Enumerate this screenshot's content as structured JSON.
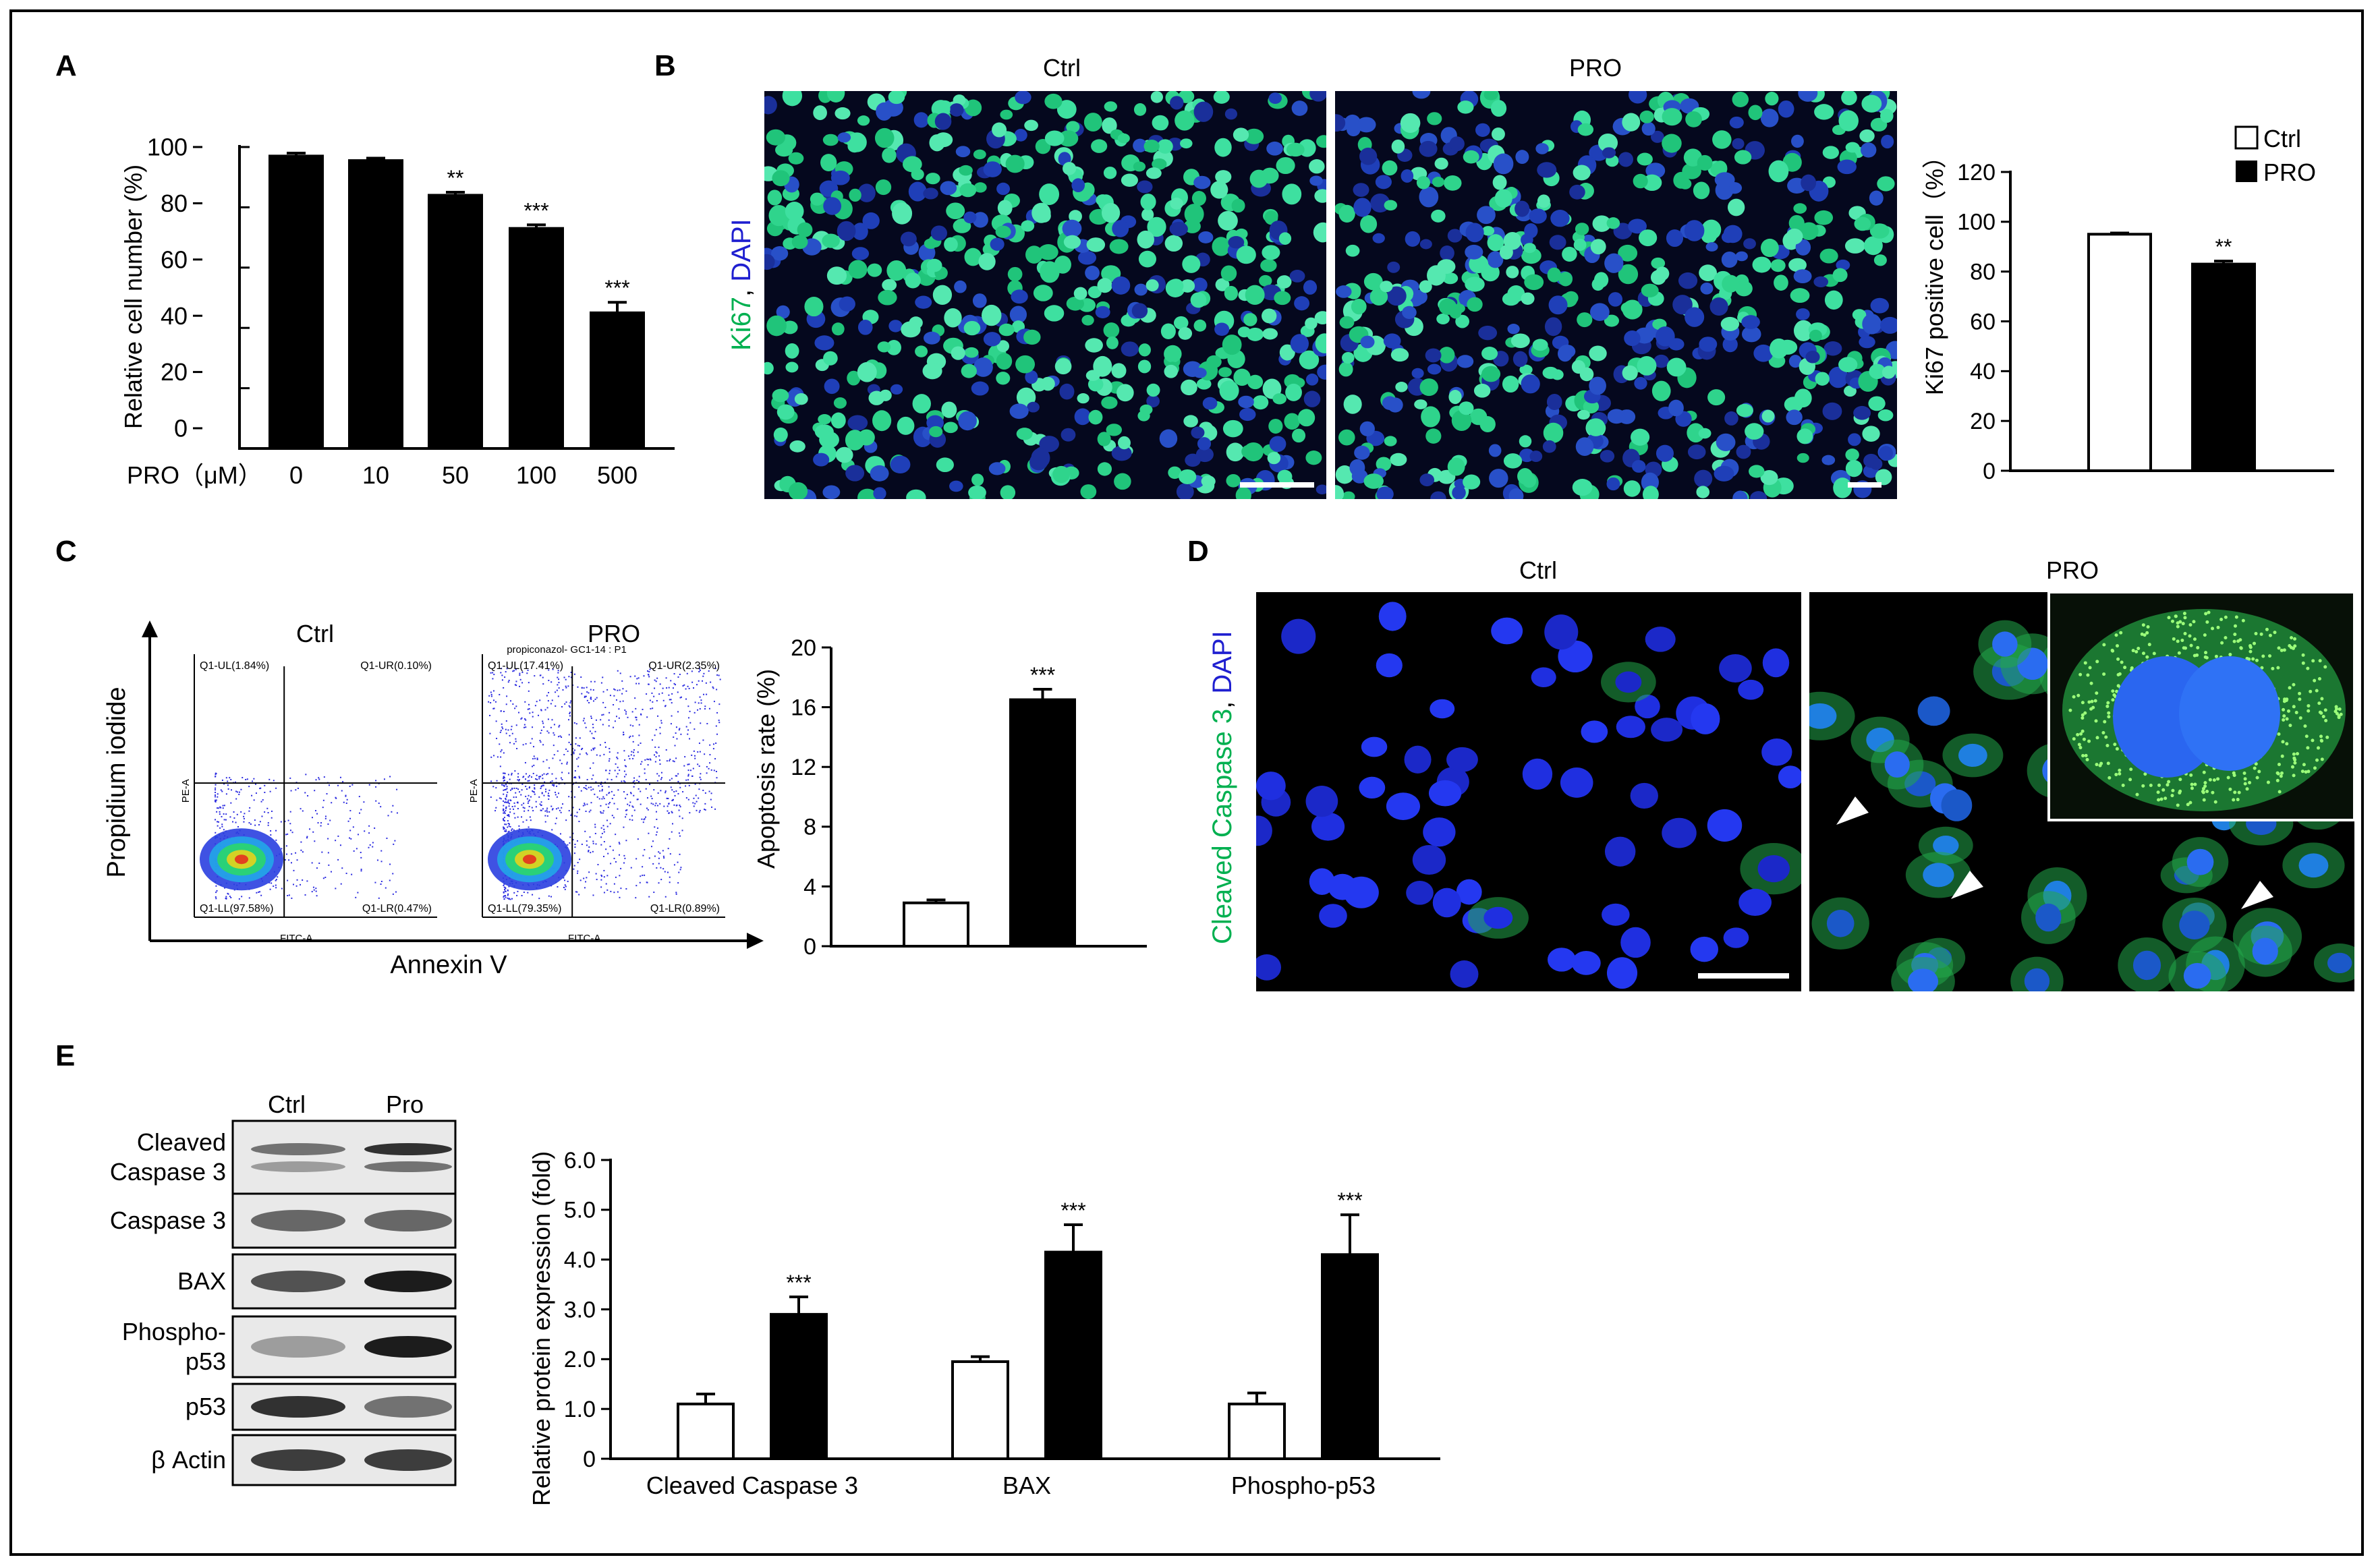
{
  "figure": {
    "panel_A": {
      "letter": "A",
      "ylabel": "Relative cell number (%)",
      "treatment_label": "PRO（μM）",
      "y_ticks": [
        "0",
        "20",
        "40",
        "60",
        "80",
        "100"
      ]
    },
    "panel_B": {
      "letter": "B",
      "image_titles": [
        "Ctrl",
        "PRO"
      ],
      "stain_label_parts": [
        "Ki67",
        ", ",
        "DAPI"
      ],
      "stain_colors": [
        "#00b050",
        "#000000",
        "#1f1fd0"
      ],
      "ylabel": "Ki67 positive cell（%）",
      "legend": [
        "Ctrl",
        "PRO"
      ],
      "y_ticks": [
        "0",
        "20",
        "40",
        "60",
        "80",
        "100",
        "120"
      ]
    },
    "panel_C": {
      "letter": "C",
      "flow_titles": [
        "Ctrl",
        "PRO"
      ],
      "flow_subtitle": "propiconazol- GC1-14 : P1",
      "flow_ylabel": "Propidium iodide",
      "flow_xlabel": "Annexin V",
      "flow_axis_y": "PE-A",
      "flow_axis_x": "FITC-A",
      "quadrants_ctrl": [
        "Q1-UL(1.84%)",
        "Q1-UR(0.10%)",
        "Q1-LL(97.58%)",
        "Q1-LR(0.47%)"
      ],
      "quadrants_pro": [
        "Q1-UL(17.41%)",
        "Q1-UR(2.35%)",
        "Q1-LL(79.35%)",
        "Q1-LR(0.89%)"
      ],
      "ylabel": "Apoptosis rate (%)",
      "y_ticks": [
        "0",
        "4",
        "8",
        "12",
        "16",
        "20"
      ]
    },
    "panel_D": {
      "letter": "D",
      "image_titles": [
        "Ctrl",
        "PRO"
      ],
      "stain_label_parts": [
        "Cleaved Caspase 3",
        ", ",
        "DAPI"
      ],
      "stain_colors": [
        "#00b050",
        "#000000",
        "#1f1fd0"
      ]
    },
    "panel_E": {
      "letter": "E",
      "blot_columns": [
        "Ctrl",
        "Pro"
      ],
      "blot_rows": [
        "Cleaved\nCaspase 3",
        "Caspase 3",
        "BAX",
        "Phospho-\np53",
        "p53",
        "β Actin"
      ],
      "ylabel": "Relative protein expression (fold)",
      "y_ticks": [
        "0",
        "1.0",
        "2.0",
        "3.0",
        "4.0",
        "5.0",
        "6.0"
      ]
    }
  },
  "chart_data": [
    {
      "id": "A",
      "type": "bar",
      "categories": [
        "0",
        "10",
        "50",
        "100",
        "500"
      ],
      "series": [
        {
          "values": [
            97,
            95.5,
            84,
            73,
            45
          ],
          "errors": [
            1,
            0.8,
            1,
            1.2,
            3.5
          ]
        }
      ],
      "significance": [
        "",
        "",
        "**",
        "***",
        "***"
      ],
      "ylim": [
        0,
        100
      ],
      "xlabel": "PRO（μM）",
      "ylabel": "Relative cell number (%)"
    },
    {
      "id": "B",
      "type": "bar",
      "categories": [
        "Ctrl",
        "PRO"
      ],
      "values": [
        95,
        83
      ],
      "errors": [
        0.5,
        1.2
      ],
      "significance": [
        "",
        "**"
      ],
      "ylim": [
        0,
        120
      ],
      "ylabel": "Ki67 positive cell（%）",
      "legend": [
        "Ctrl",
        "PRO"
      ],
      "legend_position": "top-right"
    },
    {
      "id": "C",
      "type": "bar",
      "categories": [
        "Ctrl",
        "PRO"
      ],
      "values": [
        2.9,
        16.5
      ],
      "errors": [
        0.2,
        0.7
      ],
      "significance": [
        "",
        "***"
      ],
      "ylim": [
        0,
        20
      ],
      "ylabel": "Apoptosis rate (%)"
    },
    {
      "id": "E",
      "type": "bar",
      "categories": [
        "Cleaved Caspase 3",
        "BAX",
        "Phospho-p53"
      ],
      "series": [
        {
          "name": "Ctrl",
          "values": [
            1.1,
            1.95,
            1.1
          ],
          "errors": [
            0.2,
            0.1,
            0.22
          ]
        },
        {
          "name": "Pro",
          "values": [
            2.9,
            4.15,
            4.1
          ],
          "errors": [
            0.35,
            0.55,
            0.8
          ]
        }
      ],
      "significance": [
        "***",
        "***",
        "***"
      ],
      "ylim": [
        0,
        6
      ],
      "ylabel": "Relative protein expression (fold)"
    }
  ]
}
